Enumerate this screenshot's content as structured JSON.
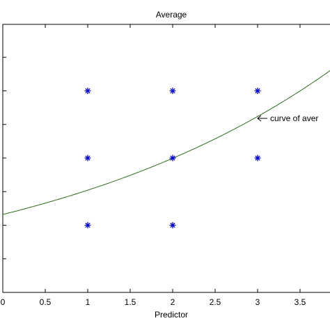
{
  "chart_data": {
    "type": "scatter",
    "title": "Average",
    "xlabel": "Predictor",
    "ylabel": "",
    "xlim": [
      0,
      3.85
    ],
    "ylim": [
      0,
      8
    ],
    "grid": false,
    "x_ticks": [
      0,
      0.5,
      1,
      1.5,
      2,
      2.5,
      3,
      3.5
    ],
    "x_tick_labels": [
      "0",
      "0.5",
      "1",
      "1.5",
      "2",
      "2.5",
      "3",
      "3.5"
    ],
    "y_ticks": [
      1,
      2,
      3,
      4,
      5,
      6,
      7
    ],
    "series": [
      {
        "marker": "asterisk",
        "color": "#0000cc",
        "points": [
          {
            "x": 1,
            "y": 2
          },
          {
            "x": 1,
            "y": 4
          },
          {
            "x": 1,
            "y": 6
          },
          {
            "x": 2,
            "y": 2
          },
          {
            "x": 2,
            "y": 4
          },
          {
            "x": 2,
            "y": 6
          },
          {
            "x": 3,
            "y": 4
          },
          {
            "x": 3,
            "y": 6
          }
        ]
      },
      {
        "marker": "line",
        "color": "#2e6b1f",
        "function": "exponential",
        "a": 2.32,
        "b": 0.2714
      }
    ],
    "annotations": [
      {
        "text": "curve of aver",
        "x": 3,
        "y": 5.2
      }
    ]
  }
}
